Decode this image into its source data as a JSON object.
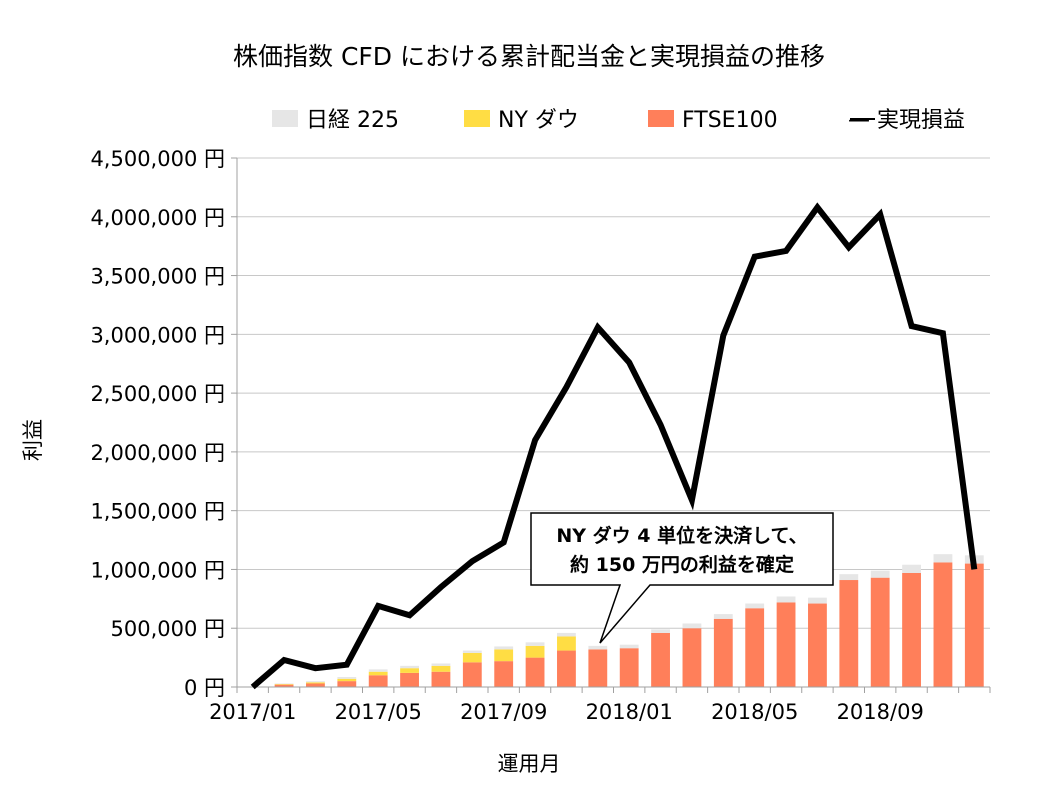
{
  "chart_data": {
    "type": "bar",
    "title": "株価指数 CFD における累計配当金と実現損益の推移",
    "xlabel": "運用月",
    "ylabel": "利益",
    "ylim": [
      0,
      4500000
    ],
    "y_ticks": [
      "0 円",
      "500,000 円",
      "1,000,000 円",
      "1,500,000 円",
      "2,000,000 円",
      "2,500,000 円",
      "3,000,000 円",
      "3,500,000 円",
      "4,000,000 円",
      "4,500,000 円"
    ],
    "x_tick_labels": [
      "2017/01",
      "2017/05",
      "2017/09",
      "2018/01",
      "2018/05",
      "2018/09"
    ],
    "categories": [
      "2017/01",
      "2017/02",
      "2017/03",
      "2017/04",
      "2017/05",
      "2017/06",
      "2017/07",
      "2017/08",
      "2017/09",
      "2017/10",
      "2017/11",
      "2017/12",
      "2018/01",
      "2018/02",
      "2018/03",
      "2018/04",
      "2018/05",
      "2018/06",
      "2018/07",
      "2018/08",
      "2018/09",
      "2018/10",
      "2018/11",
      "2018/12"
    ],
    "stacked": true,
    "series": [
      {
        "name": "FTSE100",
        "kind": "bar",
        "color": "#ff7f5a",
        "values": [
          0,
          20000,
          30000,
          50000,
          100000,
          120000,
          130000,
          210000,
          220000,
          250000,
          310000,
          320000,
          330000,
          460000,
          500000,
          580000,
          670000,
          720000,
          710000,
          910000,
          930000,
          970000,
          1060000,
          1050000
        ]
      },
      {
        "name": "NY ダウ",
        "kind": "bar",
        "color": "#ffdd44",
        "values": [
          0,
          5000,
          10000,
          20000,
          30000,
          40000,
          50000,
          80000,
          100000,
          100000,
          120000,
          0,
          0,
          0,
          0,
          0,
          0,
          0,
          0,
          0,
          0,
          0,
          0,
          0
        ]
      },
      {
        "name": "日経 225",
        "kind": "bar",
        "color": "#e6e6e6",
        "values": [
          0,
          5000,
          10000,
          15000,
          20000,
          20000,
          20000,
          20000,
          25000,
          30000,
          30000,
          30000,
          30000,
          30000,
          40000,
          40000,
          40000,
          50000,
          50000,
          50000,
          60000,
          70000,
          70000,
          70000
        ]
      },
      {
        "name": "実現損益",
        "kind": "line",
        "color": "#000000",
        "values": [
          0,
          230000,
          160000,
          190000,
          690000,
          610000,
          850000,
          1070000,
          1230000,
          2100000,
          2550000,
          3060000,
          2760000,
          2230000,
          1590000,
          2990000,
          3660000,
          3710000,
          4080000,
          3740000,
          4020000,
          3070000,
          3010000,
          1000000
        ]
      }
    ],
    "legend": {
      "position": "top",
      "items": [
        "日経 225",
        "NY ダウ",
        "FTSE100",
        "— 実現損益"
      ]
    },
    "annotation": {
      "lines": [
        "NY ダウ 4 単位を決済して、",
        "約 150 万円の利益を確定"
      ],
      "target": "2017/12"
    },
    "grid": "horizontal"
  }
}
